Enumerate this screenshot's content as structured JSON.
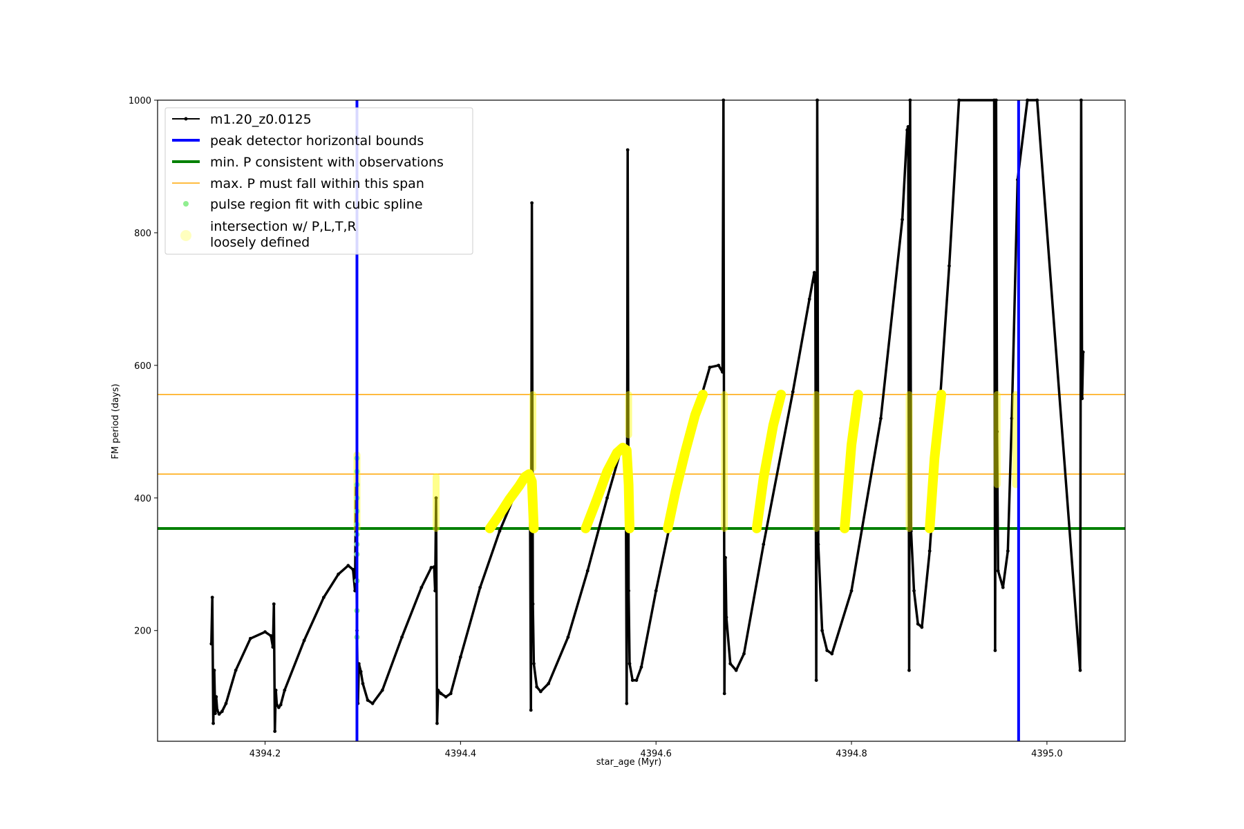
{
  "chart_data": {
    "type": "line",
    "xlabel": "star_age (Myr)",
    "ylabel": "FM period (days)",
    "xlim": [
      4394.09,
      4395.08
    ],
    "ylim": [
      33,
      1000
    ],
    "xticks": [
      4394.2,
      4394.4,
      4394.6,
      4394.8,
      4395.0
    ],
    "yticks": [
      200,
      400,
      600,
      800,
      1000
    ],
    "grid": false,
    "legend_position": "upper-left",
    "colors": {
      "model": "#000000",
      "bounds": "#0000ff",
      "min_p": "#008000",
      "max_p": "#ffa500",
      "pulse": "#90ee90",
      "intersect": "#ffff00"
    },
    "legend": [
      {
        "label": "m1.20_z0.0125",
        "style": "line-marker"
      },
      {
        "label": "peak detector horizontal bounds",
        "style": "thick-line"
      },
      {
        "label": "min. P consistent with observations",
        "style": "thick-line"
      },
      {
        "label": "max. P must fall within this span",
        "style": "thin-line"
      },
      {
        "label": "pulse region fit with cubic spline",
        "style": "dot"
      },
      {
        "label": "intersection w/ P,L,T,R",
        "label2": "loosely defined",
        "style": "big-dot"
      }
    ],
    "vertical_bounds": [
      4394.294,
      4394.971
    ],
    "min_p": 354,
    "max_p_span": [
      436,
      556
    ],
    "series": [
      {
        "name": "m1.20_z0.0125",
        "x": [
          4394.145,
          4394.146,
          4394.147,
          4394.148,
          4394.149,
          4394.15,
          4394.151,
          4394.153,
          4394.156,
          4394.16,
          4394.17,
          4394.185,
          4394.2,
          4394.206,
          4394.208,
          4394.209,
          4394.21,
          4394.211,
          4394.212,
          4394.214,
          4394.216,
          4394.22,
          4394.24,
          4394.26,
          4394.275,
          4394.285,
          4394.29,
          4394.292,
          4394.293,
          4394.294,
          4394.295,
          4394.296,
          4394.298,
          4394.3,
          4394.305,
          4394.31,
          4394.32,
          4394.34,
          4394.36,
          4394.37,
          4394.373,
          4394.374,
          4394.375,
          4394.376,
          4394.377,
          4394.38,
          4394.385,
          4394.39,
          4394.4,
          4394.42,
          4394.44,
          4394.46,
          4394.468,
          4394.471,
          4394.472,
          4394.473,
          4394.474,
          4394.475,
          4394.478,
          4394.482,
          4394.49,
          4394.51,
          4394.53,
          4394.55,
          4394.564,
          4394.569,
          4394.57,
          4394.571,
          4394.572,
          4394.573,
          4394.576,
          4394.58,
          4394.585,
          4394.6,
          4394.63,
          4394.655,
          4394.664,
          4394.668,
          4394.669,
          4394.67,
          4394.671,
          4394.672,
          4394.676,
          4394.682,
          4394.69,
          4394.71,
          4394.74,
          4394.757,
          4394.762,
          4394.763,
          4394.764,
          4394.765,
          4394.766,
          4394.77,
          4394.775,
          4394.78,
          4394.8,
          4394.83,
          4394.852,
          4394.857,
          4394.858,
          4394.859,
          4394.86,
          4394.861,
          4394.864,
          4394.868,
          4394.872,
          4394.88,
          4394.9,
          4394.91,
          4394.946,
          4394.947,
          4394.948,
          4394.949,
          4394.95,
          4394.955,
          4394.96,
          4394.964,
          4394.97,
          4394.98,
          4394.99,
          4395.034,
          4395.035,
          4395.036,
          4395.037
        ],
        "y": [
          180,
          250,
          60,
          140,
          75,
          100,
          80,
          74,
          78,
          90,
          140,
          188,
          198,
          192,
          175,
          240,
          48,
          110,
          88,
          84,
          88,
          110,
          185,
          250,
          285,
          298,
          292,
          260,
          420,
          200,
          90,
          150,
          138,
          120,
          95,
          90,
          110,
          190,
          265,
          295,
          296,
          260,
          400,
          60,
          110,
          105,
          100,
          105,
          160,
          265,
          350,
          420,
          438,
          420,
          80,
          845,
          240,
          150,
          115,
          108,
          120,
          190,
          290,
          400,
          472,
          470,
          90,
          925,
          260,
          150,
          125,
          125,
          145,
          260,
          470,
          597,
          600,
          590,
          1000,
          105,
          310,
          220,
          150,
          140,
          165,
          330,
          560,
          700,
          740,
          725,
          125,
          1000,
          330,
          200,
          170,
          165,
          260,
          520,
          820,
          955,
          960,
          140,
          1000,
          350,
          260,
          210,
          205,
          320,
          750,
          1000,
          1000,
          170,
          1000,
          500,
          290,
          265,
          320,
          520,
          880,
          1000,
          1000,
          140,
          1000,
          550,
          620
        ]
      }
    ],
    "pulse_points": {
      "x": 4394.294,
      "y": [
        190,
        230,
        275,
        315,
        330,
        345,
        360,
        380,
        400,
        420,
        440,
        460
      ]
    },
    "intersection_regions": [
      {
        "type": "column",
        "x": 4394.294,
        "y": [
          354,
          465
        ]
      },
      {
        "type": "column",
        "x": 4394.375,
        "y": [
          354,
          432
        ]
      },
      {
        "type": "arc",
        "x": [
          4394.43,
          4394.44,
          4394.45,
          4394.46,
          4394.466,
          4394.47,
          4394.473,
          4394.474,
          4394.475
        ],
        "y": [
          354,
          375,
          398,
          418,
          432,
          436,
          425,
          390,
          354
        ]
      },
      {
        "type": "column",
        "x": 4394.474,
        "y": [
          445,
          556
        ]
      },
      {
        "type": "arc",
        "x": [
          4394.528,
          4394.54,
          4394.55,
          4394.56,
          4394.566,
          4394.57,
          4394.572,
          4394.573
        ],
        "y": [
          354,
          400,
          440,
          468,
          476,
          472,
          420,
          354
        ]
      },
      {
        "type": "column",
        "x": 4394.572,
        "y": [
          495,
          556
        ]
      },
      {
        "type": "arc",
        "x": [
          4394.612,
          4394.62,
          4394.63,
          4394.64,
          4394.648
        ],
        "y": [
          354,
          410,
          470,
          525,
          556
        ]
      },
      {
        "type": "column",
        "x": 4394.67,
        "y": [
          354,
          556
        ]
      },
      {
        "type": "arc",
        "x": [
          4394.703,
          4394.71,
          4394.72,
          4394.728
        ],
        "y": [
          354,
          430,
          510,
          556
        ]
      },
      {
        "type": "column",
        "x": 4394.764,
        "y": [
          354,
          556
        ]
      },
      {
        "type": "arc",
        "x": [
          4394.793,
          4394.8,
          4394.807
        ],
        "y": [
          354,
          480,
          556
        ]
      },
      {
        "type": "column",
        "x": 4394.859,
        "y": [
          354,
          556
        ]
      },
      {
        "type": "arc",
        "x": [
          4394.88,
          4394.885,
          4394.892
        ],
        "y": [
          354,
          460,
          556
        ]
      },
      {
        "type": "column",
        "x": 4394.949,
        "y": [
          420,
          556
        ]
      },
      {
        "type": "column",
        "x": 4394.968,
        "y": [
          420,
          556
        ]
      }
    ]
  }
}
